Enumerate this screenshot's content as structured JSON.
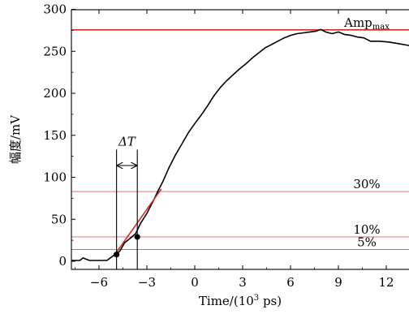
{
  "chart_data": {
    "type": "line",
    "xlabel": "Time/(10",
    "xlabel_sup": "3",
    "xlabel_end": " ps)",
    "ylabel": "幅度/mV",
    "xlim": [
      -8,
      15.5
    ],
    "ylim": [
      -5,
      300
    ],
    "xticks": [
      {
        "v": -6,
        "label": "−6"
      },
      {
        "v": -3,
        "label": "−3"
      },
      {
        "v": 0,
        "label": "0"
      },
      {
        "v": 3,
        "label": "3"
      },
      {
        "v": 6,
        "label": "6"
      },
      {
        "v": 9,
        "label": "9"
      },
      {
        "v": 12,
        "label": "12"
      }
    ],
    "yticks": [
      {
        "v": 0,
        "label": "0"
      },
      {
        "v": 50,
        "label": "50"
      },
      {
        "v": 100,
        "label": "100"
      },
      {
        "v": 150,
        "label": "150"
      },
      {
        "v": 200,
        "label": "200"
      },
      {
        "v": 250,
        "label": "250"
      },
      {
        "v": 300,
        "label": "300"
      }
    ],
    "series": [
      {
        "color": "#000000",
        "x": [
          -8,
          -7.2,
          -7.0,
          -6.6,
          -5.5,
          -5.0,
          -4.7,
          -4.4,
          -4.0,
          -3.7,
          -3.4,
          -3.0,
          -2.6,
          -2.3,
          -2.0,
          -1.6,
          -1.2,
          -0.8,
          -0.4,
          0,
          0.4,
          0.8,
          1.2,
          1.6,
          2.0,
          2.4,
          2.8,
          3.2,
          3.6,
          4.0,
          4.4,
          4.8,
          5.2,
          5.6,
          6.0,
          6.4,
          6.8,
          7.2,
          7.6,
          7.9,
          8.2,
          8.6,
          9.0,
          9.4,
          9.8,
          10.2,
          10.6,
          11.0,
          11.6,
          12.2,
          12.8,
          13.4,
          14.0,
          14.6,
          15.2,
          15.5
        ],
        "y": [
          1,
          1,
          4,
          1,
          1,
          8,
          12,
          22,
          28,
          33,
          45,
          57,
          72,
          84,
          95,
          112,
          127,
          140,
          153,
          164,
          174,
          185,
          197,
          207,
          215,
          222,
          229,
          235,
          242,
          248,
          254,
          258,
          262,
          266,
          269,
          271,
          272,
          273,
          274,
          276,
          273,
          271,
          273,
          270,
          269,
          267,
          266,
          262,
          262,
          261,
          259,
          257,
          255,
          256,
          252,
          248
        ]
      }
    ],
    "hlines": [
      {
        "y": 275.5,
        "label": "Amp",
        "label_sub": "max",
        "color": "#d42a2a",
        "width": 1.6
      },
      {
        "y": 83,
        "label": "30%",
        "color": "#e06060",
        "width": 0.9
      },
      {
        "y": 29,
        "label": "10%",
        "color": "#e06060",
        "width": 0.9
      },
      {
        "y": 14,
        "label": "5%",
        "color": "#e06060",
        "width": 0.9
      }
    ],
    "fit_line": {
      "x": [
        -5.0,
        -2.1
      ],
      "y": [
        8,
        86
      ],
      "color": "#d42a2a"
    },
    "markers": [
      {
        "x": -4.9,
        "y": 8
      },
      {
        "x": -3.6,
        "y": 29
      }
    ],
    "delta_t": {
      "x1": -4.9,
      "x2": -3.6,
      "label": "ΔT",
      "arrow_y": 114,
      "top_y": 133
    }
  }
}
